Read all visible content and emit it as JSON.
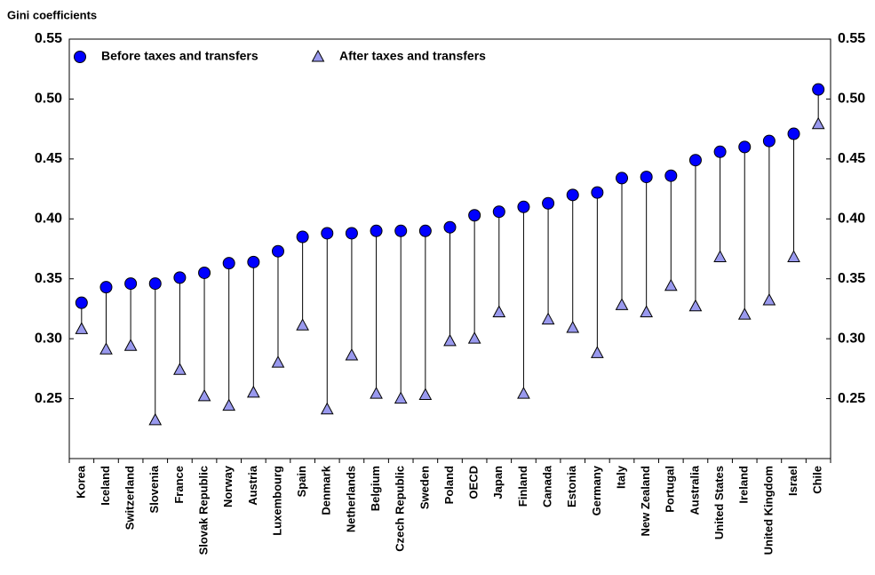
{
  "chart_data": {
    "type": "dumbbell",
    "y_axis_label": "Gini coefficients",
    "categories": [
      "Korea",
      "Iceland",
      "Switzerland",
      "Slovenia",
      "France",
      "Slovak Republic",
      "Norway",
      "Austria",
      "Luxembourg",
      "Spain",
      "Denmark",
      "Netherlands",
      "Belgium",
      "Czech Republic",
      "Sweden",
      "Poland",
      "OECD",
      "Japan",
      "Finland",
      "Canada",
      "Estonia",
      "Germany",
      "Italy",
      "New Zealand",
      "Portugal",
      "Australia",
      "United States",
      "Ireland",
      "United Kingdom",
      "Israel",
      "Chile"
    ],
    "bold_category_indices": [
      6,
      16
    ],
    "series": [
      {
        "name": "Before taxes and transfers",
        "color": "#0000ff",
        "marker": "circle",
        "values": [
          0.33,
          0.343,
          0.346,
          0.346,
          0.351,
          0.355,
          0.363,
          0.364,
          0.373,
          0.385,
          0.388,
          0.388,
          0.39,
          0.39,
          0.39,
          0.393,
          0.403,
          0.406,
          0.41,
          0.413,
          0.42,
          0.422,
          0.434,
          0.435,
          0.436,
          0.449,
          0.456,
          0.46,
          0.465,
          0.471,
          0.508
        ]
      },
      {
        "name": "After taxes and transfers",
        "color": "#9999ee",
        "marker": "triangle",
        "values": [
          0.308,
          0.291,
          0.294,
          0.232,
          0.274,
          0.252,
          0.244,
          0.255,
          0.28,
          0.311,
          0.241,
          0.286,
          0.254,
          0.25,
          0.253,
          0.298,
          0.3,
          0.322,
          0.254,
          0.316,
          0.309,
          0.288,
          0.328,
          0.322,
          0.344,
          0.327,
          0.368,
          0.32,
          0.332,
          0.368,
          0.479
        ]
      }
    ],
    "ylim": [
      0.2,
      0.55
    ],
    "yticks": [
      0.25,
      {
        "value": 0.3,
        "label": "0.30"
      },
      0.35,
      {
        "value": 0.4,
        "label": "0.40"
      },
      0.45,
      {
        "value": 0.5,
        "label": "0.50"
      },
      0.55
    ],
    "y2lim": [
      0.2,
      0.55
    ],
    "y2ticks": [
      0.25,
      {
        "value": 0.3,
        "label": "0.30"
      },
      0.35,
      {
        "value": 0.4,
        "label": "0.40"
      },
      0.45,
      {
        "value": 0.5,
        "label": "0.50"
      },
      0.55
    ],
    "legend": "top-left"
  }
}
